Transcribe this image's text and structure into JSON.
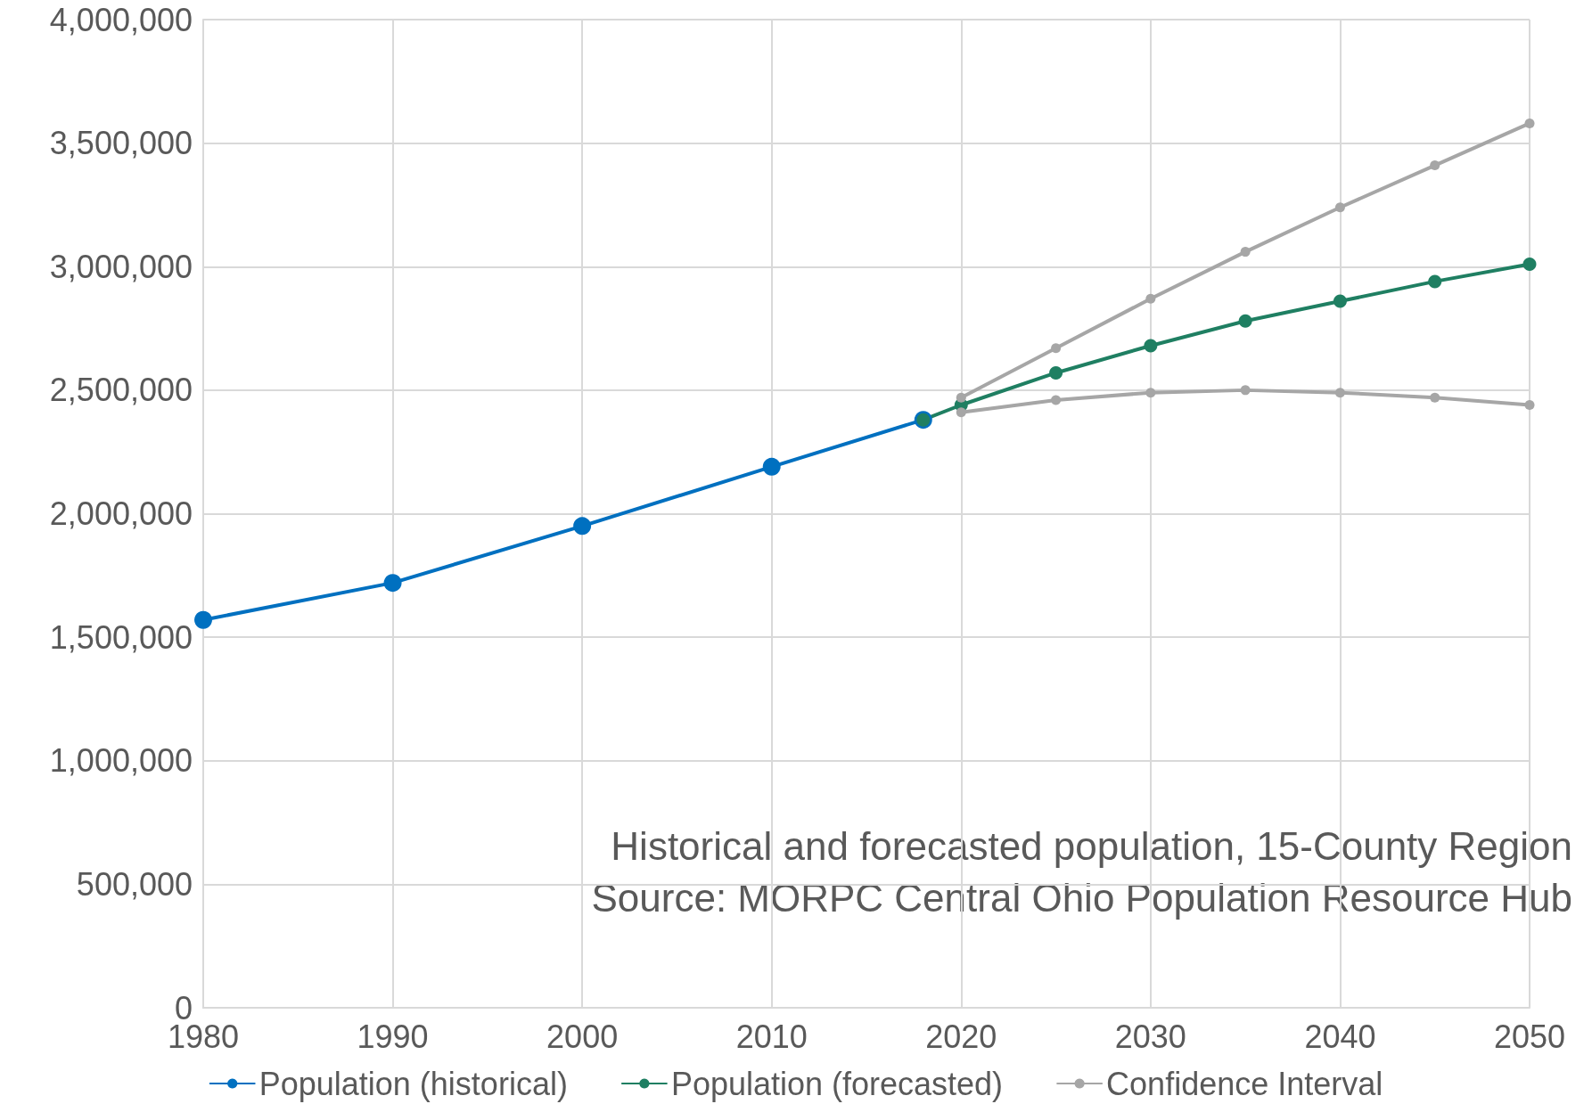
{
  "chart_data": {
    "type": "line",
    "xlim": [
      1980,
      2050
    ],
    "xticks": [
      1980,
      1990,
      2000,
      2010,
      2020,
      2030,
      2040,
      2050
    ],
    "ylim": [
      0,
      4000000
    ],
    "yticks": [
      {
        "value": 0,
        "label": "0"
      },
      {
        "value": 500000,
        "label": "500,000"
      },
      {
        "value": 1000000,
        "label": "1,000,000"
      },
      {
        "value": 1500000,
        "label": "1,500,000"
      },
      {
        "value": 2000000,
        "label": "2,000,000"
      },
      {
        "value": 2500000,
        "label": "2,500,000"
      },
      {
        "value": 3000000,
        "label": "3,000,000"
      },
      {
        "value": 3500000,
        "label": "3,500,000"
      },
      {
        "value": 4000000,
        "label": "4,000,000"
      }
    ],
    "grid": true,
    "legend": "bottom",
    "marker": "circle",
    "line_style": "solid",
    "series": [
      {
        "name": "Population (historical)",
        "color": "#0070c0",
        "x": [
          1980,
          1990,
          2000,
          2010,
          2018
        ],
        "values": [
          1570000,
          1720000,
          1950000,
          2190000,
          2380000
        ]
      },
      {
        "name": "Population (forecasted)",
        "color": "#1f7f62",
        "x": [
          2018,
          2020,
          2025,
          2030,
          2035,
          2040,
          2045,
          2050
        ],
        "values": [
          2380000,
          2440000,
          2570000,
          2680000,
          2780000,
          2860000,
          2940000,
          3010000
        ]
      },
      {
        "name": "Confidence Interval",
        "color": "#a6a6a6",
        "x": [
          2020,
          2025,
          2030,
          2035,
          2040,
          2045,
          2050
        ],
        "values": [
          2470000,
          2670000,
          2870000,
          3060000,
          3240000,
          3410000,
          3580000
        ]
      },
      {
        "color": "#a6a6a6",
        "x": [
          2020,
          2025,
          2030,
          2035,
          2040,
          2045,
          2050
        ],
        "values": [
          2410000,
          2460000,
          2490000,
          2500000,
          2490000,
          2470000,
          2440000
        ]
      }
    ],
    "annotations": [
      "Historical and forecasted population, 15-County Region",
      "Source: MORPC Central Ohio Population Resource Hub"
    ]
  }
}
